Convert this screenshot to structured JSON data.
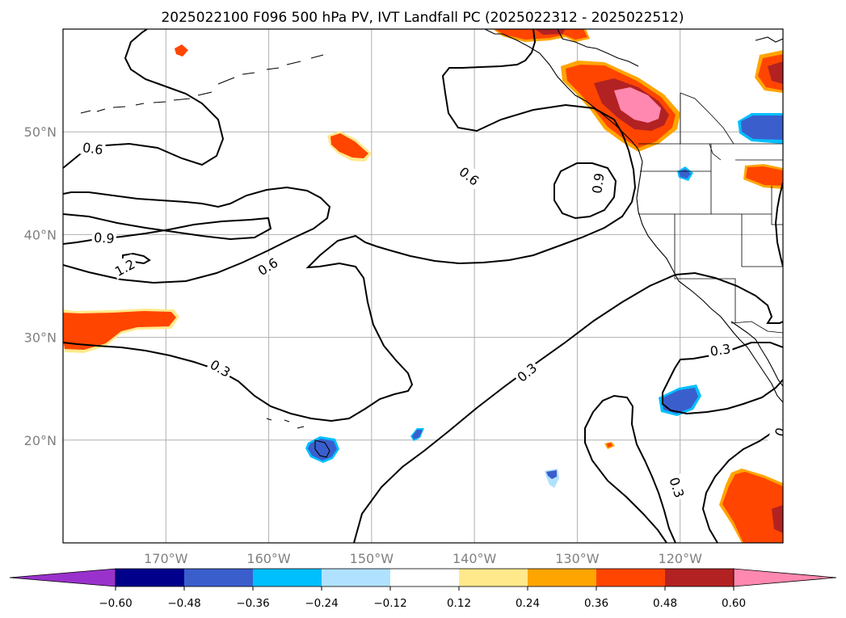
{
  "title": "2025022100 F096 500 hPa PV, IVT Landfall PC (2025022312 - 2025022512)",
  "map": {
    "projection": "cylindrical",
    "lon_range": [
      -180,
      -110
    ],
    "lat_range": [
      10,
      60
    ],
    "gridlines": true,
    "lat_ticks": [
      {
        "value": 20,
        "label": "20°N"
      },
      {
        "value": 30,
        "label": "30°N"
      },
      {
        "value": 40,
        "label": "40°N"
      },
      {
        "value": 50,
        "label": "50°N"
      }
    ],
    "lon_ticks": [
      {
        "value": -170,
        "label": "170°W"
      },
      {
        "value": -160,
        "label": "160°W"
      },
      {
        "value": -150,
        "label": "150°W"
      },
      {
        "value": -140,
        "label": "140°W"
      },
      {
        "value": -130,
        "label": "130°W"
      },
      {
        "value": -120,
        "label": "120°W"
      }
    ]
  },
  "contour_labels": [
    {
      "text": "0.6",
      "lon": -177.1,
      "lat": 48.4,
      "angle": 8
    },
    {
      "text": "0.9",
      "lon": -176.0,
      "lat": 39.7,
      "angle": 4
    },
    {
      "text": "1.2",
      "lon": -174.0,
      "lat": 36.8,
      "angle": -28
    },
    {
      "text": "0.6",
      "lon": -160.1,
      "lat": 36.9,
      "angle": -32
    },
    {
      "text": "0.6",
      "lon": -140.5,
      "lat": 45.7,
      "angle": 38
    },
    {
      "text": "0.9",
      "lon": -128.0,
      "lat": 45.0,
      "angle": -82
    },
    {
      "text": "0.3",
      "lon": -164.7,
      "lat": 27.0,
      "angle": 30
    },
    {
      "text": "0.3",
      "lon": -134.9,
      "lat": 26.6,
      "angle": -40
    },
    {
      "text": "0.3",
      "lon": -116.1,
      "lat": 28.8,
      "angle": -8
    },
    {
      "text": "0.3",
      "lon": -120.3,
      "lat": 15.4,
      "angle": 72
    },
    {
      "text": "0",
      "lon": -110.3,
      "lat": 20.8,
      "angle": -70
    }
  ],
  "colorbar": {
    "levels": [
      -0.6,
      -0.48,
      -0.36,
      -0.24,
      -0.12,
      0.12,
      0.24,
      0.36,
      0.48,
      0.6
    ],
    "tick_labels": [
      "−0.60",
      "−0.48",
      "−0.36",
      "−0.24",
      "−0.12",
      "0.12",
      "0.24",
      "0.36",
      "0.48",
      "0.60"
    ],
    "colors": [
      "#9932cc",
      "#00008b",
      "#3a5fcd",
      "#00bfff",
      "#b0e2ff",
      "#ffffff",
      "#ffe98a",
      "#ffa500",
      "#ff4500",
      "#b22222",
      "#ff88b0"
    ],
    "extend": "both"
  }
}
